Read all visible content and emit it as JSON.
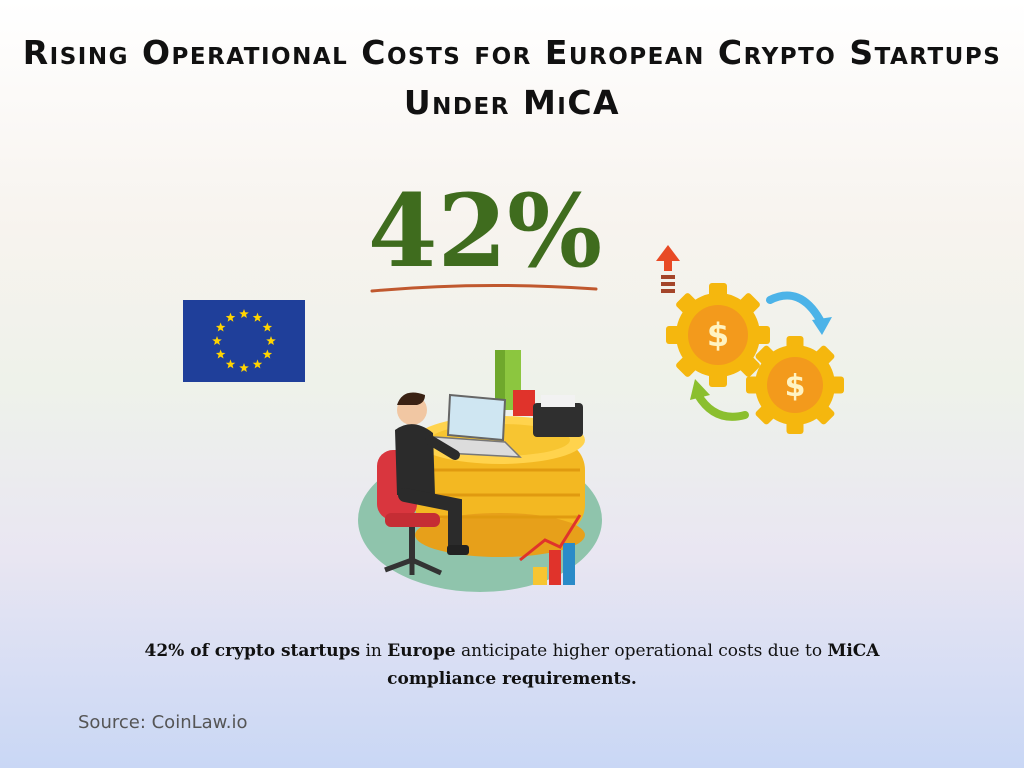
{
  "title": "Rising Operational Costs for European Crypto Startups Under MiCA",
  "stat": {
    "value": "42%",
    "color": "#3f6c1e"
  },
  "caption": {
    "part1": "42% of crypto startups",
    "part2": " in ",
    "part3": "Europe",
    "part4": " anticipate higher operational costs due to ",
    "part5": "MiCA compliance requirements."
  },
  "source": "Source: CoinLaw.io",
  "icons": {
    "flag": "eu-flag-icon",
    "gears": "dollar-gears-cycle-icon",
    "arrow": "up-arrow-icon",
    "scene": "person-laptop-coins-illustration"
  },
  "colors": {
    "eu_blue": "#1f3f9a",
    "eu_gold": "#ffd400",
    "gear_gold": "#f5b70e",
    "coin_gold": "#f3b822",
    "arrow_blue": "#4cb3e8",
    "arrow_green": "#8bbf2f",
    "arrow_red": "#e84a25"
  }
}
